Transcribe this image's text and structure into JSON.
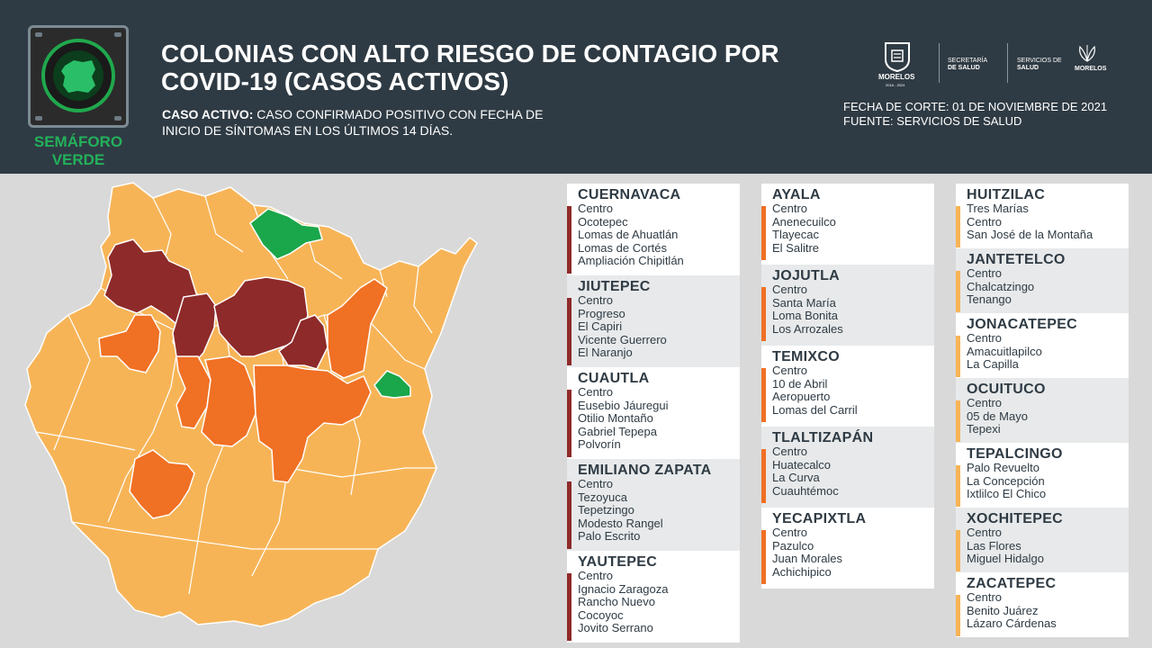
{
  "header": {
    "title_line1": "COLONIAS CON ALTO RIESGO DE CONTAGIO POR",
    "title_line2": "COVID-19 (CASOS ACTIVOS)",
    "definition_label": "CASO ACTIVO:",
    "definition_text1": " CASO CONFIRMADO POSITIVO CON FECHA DE",
    "definition_text2": "INICIO DE SÍNTOMAS EN LOS ÚLTIMOS 14 DÍAS.",
    "fecha": "FECHA DE CORTE: 01 DE NOVIEMBRE DE 2021",
    "fuente": "FUENTE: SERVICIOS DE SALUD"
  },
  "semaforo": {
    "line1": "SEMÁFORO",
    "line2": "VERDE",
    "color": "#23b05a"
  },
  "logos": {
    "morelos_label": "MORELOS",
    "morelos_years": "2018 - 2024",
    "secretaria_line1": "SECRETARÍA",
    "secretaria_line2": "DE SALUD",
    "servicios_line1": "SERVICIOS DE",
    "servicios_line2": "SALUD",
    "morelos2_label": "MORELOS"
  },
  "colors": {
    "header_bg": "#2f3b44",
    "red": "#8e2a2a",
    "orange": "#f07024",
    "light_orange": "#f7b457",
    "green": "#1aa64a"
  },
  "municipios": [
    {
      "name": "CUERNAVACA",
      "risk": "red",
      "colonias": [
        "Centro",
        "Ocotepec",
        "Lomas de Ahuatlán",
        "Lomas de Cortés",
        "Ampliación Chipitlán"
      ]
    },
    {
      "name": "JIUTEPEC",
      "risk": "red",
      "colonias": [
        "Centro",
        "Progreso",
        "El Capiri",
        "Vicente Guerrero",
        "El Naranjo"
      ]
    },
    {
      "name": "CUAUTLA",
      "risk": "red",
      "colonias": [
        "Centro",
        "Eusebio Jáuregui",
        "Otilio Montaño",
        "Gabriel Tepepa",
        "Polvorín"
      ]
    },
    {
      "name": "EMILIANO ZAPATA",
      "risk": "red",
      "colonias": [
        "Centro",
        "Tezoyuca",
        "Tepetzingo",
        "Modesto Rangel",
        "Palo Escrito"
      ]
    },
    {
      "name": "YAUTEPEC",
      "risk": "red",
      "colonias": [
        "Centro",
        "Ignacio Zaragoza",
        "Rancho Nuevo",
        "Cocoyoc",
        "Jovito Serrano"
      ]
    },
    {
      "name": "AYALA",
      "risk": "orange",
      "colonias": [
        "Centro",
        "Anenecuilco",
        "Tlayecac",
        "El Salitre"
      ]
    },
    {
      "name": "JOJUTLA",
      "risk": "orange",
      "colonias": [
        "Centro",
        "Santa María",
        "Loma Bonita",
        "Los Arrozales"
      ]
    },
    {
      "name": "TEMIXCO",
      "risk": "orange",
      "colonias": [
        "Centro",
        "10 de Abril",
        "Aeropuerto",
        "Lomas del Carril"
      ]
    },
    {
      "name": "TLALTIZAPÁN",
      "risk": "orange",
      "colonias": [
        "Centro",
        "Huatecalco",
        "La Curva",
        "Cuauhtémoc"
      ]
    },
    {
      "name": "YECAPIXTLA",
      "risk": "orange",
      "colonias": [
        "Centro",
        "Pazulco",
        "Juan Morales",
        "Achichipico"
      ]
    },
    {
      "name": "HUITZILAC",
      "risk": "light",
      "colonias": [
        "Tres Marías",
        "Centro",
        "San José de la Montaña"
      ]
    },
    {
      "name": "JANTETELCO",
      "risk": "light",
      "colonias": [
        "Centro",
        "Chalcatzingo",
        "Tenango"
      ]
    },
    {
      "name": "JONACATEPEC",
      "risk": "light",
      "colonias": [
        "Centro",
        "Amacuitlapilco",
        "La Capilla"
      ]
    },
    {
      "name": "OCUITUCO",
      "risk": "light",
      "colonias": [
        "Centro",
        "05 de Mayo",
        "Tepexi"
      ]
    },
    {
      "name": "TEPALCINGO",
      "risk": "light",
      "colonias": [
        "Palo Revuelto",
        "La Concepción",
        "Ixtlilco El Chico"
      ]
    },
    {
      "name": "XOCHITEPEC",
      "risk": "light",
      "colonias": [
        "Centro",
        "Las Flores",
        "Miguel Hidalgo"
      ]
    },
    {
      "name": "ZACATEPEC",
      "risk": "light",
      "colonias": [
        "Centro",
        "Benito Juárez",
        "Lázaro Cárdenas"
      ]
    }
  ]
}
